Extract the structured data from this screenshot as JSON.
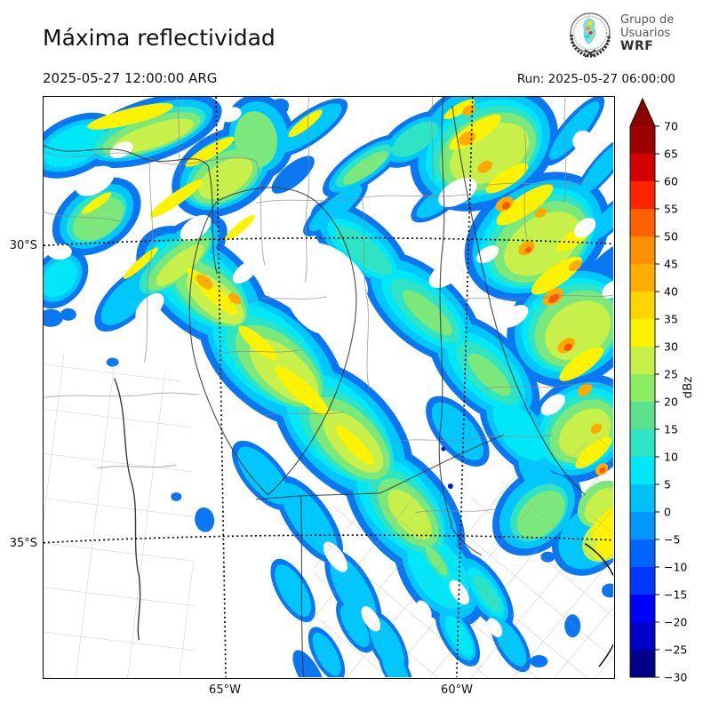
{
  "header": {
    "title": "Máxima reflectividad",
    "valid_time": "2025-05-27 12:00:00 ARG",
    "run_label": "Run: 2025-05-27 06:00:00"
  },
  "logo": {
    "line1": "Grupo de",
    "line2": "Usuarios",
    "line3": "WRF"
  },
  "map": {
    "lat_labels": [
      {
        "text": "30°S"
      },
      {
        "text": "35°S"
      }
    ],
    "lon_labels": [
      {
        "text": "65°W"
      },
      {
        "text": "60°W"
      }
    ]
  },
  "colorbar": {
    "label": "dBz",
    "tick_labels": [
      "70",
      "65",
      "60",
      "55",
      "50",
      "45",
      "40",
      "35",
      "30",
      "25",
      "20",
      "15",
      "10",
      "5",
      "0",
      "−5",
      "−10",
      "−15",
      "−20",
      "−25",
      "−30"
    ],
    "segment_colors_top_to_bottom": [
      "#9c0000",
      "#d40000",
      "#ff2400",
      "#ff6000",
      "#ff9000",
      "#ffae00",
      "#ffd400",
      "#fdf200",
      "#c8f04a",
      "#8cec64",
      "#5ce08c",
      "#2ee4c4",
      "#00e8f8",
      "#00c0f8",
      "#0096ff",
      "#0064ff",
      "#0038ff",
      "#0000ff",
      "#0000c8",
      "#000088"
    ],
    "over_arrow_color": "#8b0000",
    "value_range": [
      -30,
      70
    ],
    "tick_step": 5
  }
}
